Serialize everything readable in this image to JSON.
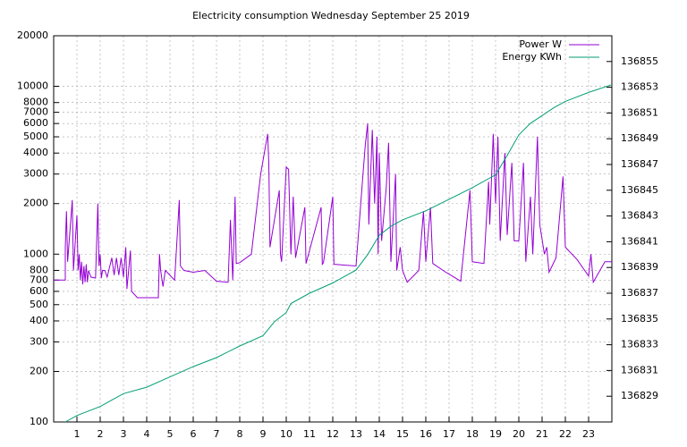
{
  "chart_data": {
    "type": "line",
    "title": "Electricity consumption Wednesday September 25 2019",
    "xlim": [
      0,
      24
    ],
    "xticks": [
      1,
      2,
      3,
      4,
      5,
      6,
      7,
      8,
      9,
      10,
      11,
      12,
      13,
      14,
      15,
      16,
      17,
      18,
      19,
      20,
      21,
      22,
      23
    ],
    "ylim": [
      100,
      20000
    ],
    "ylog": true,
    "yticks": [
      100,
      200,
      300,
      400,
      500,
      600,
      700,
      800,
      1000,
      2000,
      3000,
      4000,
      5000,
      6000,
      7000,
      8000,
      10000,
      20000
    ],
    "y2lim": [
      136827,
      136857
    ],
    "y2ticks": [
      136829,
      136831,
      136833,
      136835,
      136837,
      136839,
      136841,
      136843,
      136845,
      136847,
      136849,
      136851,
      136853,
      136855
    ],
    "grid": true,
    "legend": "top-right",
    "series": [
      {
        "name": "Power W",
        "color": "#9400d3",
        "x": [
          0,
          0.5,
          0.5,
          0.55,
          0.6,
          0.8,
          0.85,
          1.0,
          1.05,
          1.1,
          1.15,
          1.2,
          1.25,
          1.3,
          1.35,
          1.4,
          1.45,
          1.5,
          1.6,
          1.8,
          1.9,
          1.95,
          2.0,
          2.05,
          2.1,
          2.2,
          2.3,
          2.5,
          2.6,
          2.7,
          2.8,
          2.9,
          3.0,
          3.1,
          3.15,
          3.3,
          3.35,
          3.6,
          4.5,
          4.55,
          4.6,
          4.7,
          4.8,
          5.2,
          5.3,
          5.4,
          5.45,
          5.6,
          6.0,
          6.5,
          7.0,
          7.5,
          7.6,
          7.7,
          7.8,
          7.85,
          8.0,
          8.5,
          8.9,
          9.2,
          9.25,
          9.3,
          9.7,
          9.75,
          9.8,
          10.0,
          10.1,
          10.2,
          10.3,
          10.4,
          10.8,
          10.85,
          11.5,
          11.55,
          11.6,
          12.0,
          12.05,
          13.0,
          13.3,
          13.4,
          13.5,
          13.55,
          13.7,
          13.8,
          13.9,
          13.95,
          14.0,
          14.1,
          14.3,
          14.4,
          14.5,
          14.7,
          14.75,
          14.9,
          15.0,
          15.2,
          15.7,
          15.9,
          16.0,
          16.2,
          16.3,
          16.8,
          17.5,
          17.9,
          18.0,
          18.5,
          18.7,
          18.75,
          18.9,
          19.0,
          19.1,
          19.2,
          19.4,
          19.5,
          19.7,
          19.8,
          20.0,
          20.2,
          20.3,
          20.5,
          20.6,
          20.8,
          20.9,
          21.1,
          21.2,
          21.3,
          21.6,
          21.9,
          22.0,
          22.5,
          23.0,
          23.1,
          23.2,
          23.7,
          24
        ],
        "values": [
          700,
          700,
          1100,
          1800,
          900,
          2100,
          800,
          1700,
          800,
          1000,
          700,
          900,
          660,
          850,
          680,
          870,
          680,
          800,
          730,
          720,
          2000,
          850,
          1000,
          720,
          800,
          800,
          730,
          950,
          750,
          950,
          750,
          950,
          730,
          1100,
          620,
          1050,
          600,
          550,
          550,
          1000,
          800,
          640,
          800,
          700,
          1200,
          2100,
          850,
          800,
          780,
          800,
          690,
          680,
          1600,
          700,
          2200,
          880,
          890,
          1000,
          3000,
          5200,
          3500,
          1100,
          2400,
          1000,
          900,
          3300,
          3200,
          1000,
          2200,
          950,
          1900,
          880,
          1900,
          870,
          890,
          2200,
          870,
          850,
          3000,
          4500,
          6000,
          1500,
          5500,
          2000,
          5000,
          1000,
          4000,
          1200,
          2500,
          4600,
          900,
          3000,
          800,
          1100,
          800,
          680,
          800,
          1800,
          900,
          1900,
          880,
          790,
          690,
          2400,
          900,
          880,
          2700,
          1500,
          5200,
          2000,
          5000,
          1200,
          4000,
          1300,
          3500,
          1200,
          1200,
          3500,
          900,
          2200,
          1000,
          5000,
          1500,
          1000,
          1100,
          780,
          950,
          2900,
          1100,
          930,
          740,
          1000,
          680,
          900,
          900
        ]
      },
      {
        "name": "Energy KWh",
        "color": "#009e73",
        "axis": "y2",
        "x": [
          0.5,
          1,
          2,
          3,
          4,
          5,
          6,
          7,
          8,
          9,
          9.5,
          10,
          10.2,
          11,
          12,
          13,
          13.5,
          14,
          14.5,
          15,
          16,
          17,
          18,
          19,
          19.5,
          20,
          20.5,
          21,
          21.5,
          22,
          23,
          24
        ],
        "values": [
          136827.0,
          136827.5,
          136828.2,
          136829.2,
          136829.7,
          136830.5,
          136831.3,
          136832.0,
          136832.9,
          136833.7,
          136834.8,
          136835.5,
          136836.2,
          136837.0,
          136837.8,
          136838.8,
          136840.0,
          136841.5,
          136842.2,
          136842.7,
          136843.4,
          136844.3,
          136845.2,
          136846.2,
          136847.7,
          136849.3,
          136850.2,
          136850.8,
          136851.4,
          136851.9,
          136852.6,
          136853.2
        ]
      }
    ]
  }
}
